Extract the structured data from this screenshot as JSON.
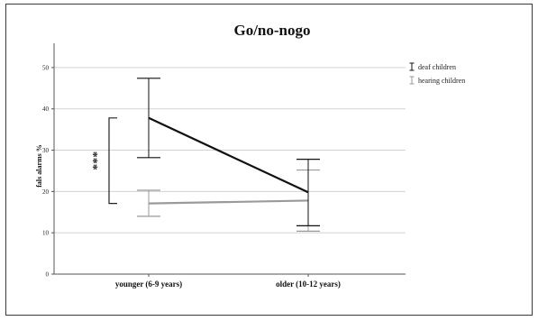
{
  "chart_data": {
    "type": "line",
    "title": "Go/no-nogo",
    "xlabel": "",
    "ylabel": "fals alarms %",
    "categories": [
      "younger (6-9 years)",
      "older (10-12 years)"
    ],
    "ylim": [
      0,
      55
    ],
    "yticks": [
      0,
      10,
      20,
      30,
      40,
      50
    ],
    "grid": true,
    "legend_position": "top-right",
    "series": [
      {
        "name": "deaf children",
        "color": "#111111",
        "values": [
          37.8,
          19.8
        ],
        "error_low": [
          28.2,
          11.7
        ],
        "error_high": [
          47.4,
          27.8
        ]
      },
      {
        "name": "hearing children",
        "color": "#9a9a9a",
        "values": [
          17.1,
          17.8
        ],
        "error_low": [
          14.0,
          10.4
        ],
        "error_high": [
          20.3,
          25.2
        ]
      }
    ],
    "annotations": [
      {
        "text": "***"
      }
    ]
  }
}
